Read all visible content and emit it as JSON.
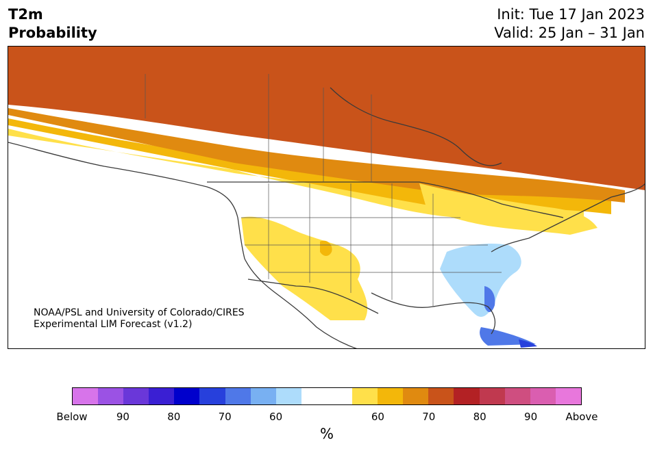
{
  "title": {
    "line1": "T2m",
    "line2": "Probability"
  },
  "dates": {
    "init": "Init: Tue 17 Jan 2023",
    "valid": "Valid: 25 Jan – 31 Jan"
  },
  "credit": {
    "line1": "NOAA/PSL and University of Colorado/CIRES",
    "line2": "Experimental LIM Forecast (v1.2)"
  },
  "legend": {
    "colors": [
      "#d774ea",
      "#9b52e4",
      "#6a37d9",
      "#3a1fd3",
      "#0000cc",
      "#2740dc",
      "#4f78e8",
      "#78b0f2",
      "#addcfb",
      "#ffffff",
      "#ffffff",
      "#ffe04a",
      "#f3b70a",
      "#e08a10",
      "#c9531a",
      "#b32124",
      "#c0394f",
      "#cf4e80",
      "#da5eb0",
      "#e877dc"
    ],
    "ticks": [
      "Below",
      "90",
      "80",
      "70",
      "60",
      "60",
      "70",
      "80",
      "90",
      "Above"
    ],
    "unit": "%"
  },
  "map_colors": {
    "land_line": "#3a3a3a",
    "state_line": "#555555",
    "p60": "#ffe04a",
    "p65": "#f3b70a",
    "p70": "#e08a10",
    "p75": "#c9531a",
    "p80": "#b32124",
    "p85": "#c0394f",
    "p90": "#cf4e80",
    "p95": "#da5eb0",
    "below60": "#addcfb",
    "below70": "#4f78e8",
    "below80": "#2740dc"
  }
}
